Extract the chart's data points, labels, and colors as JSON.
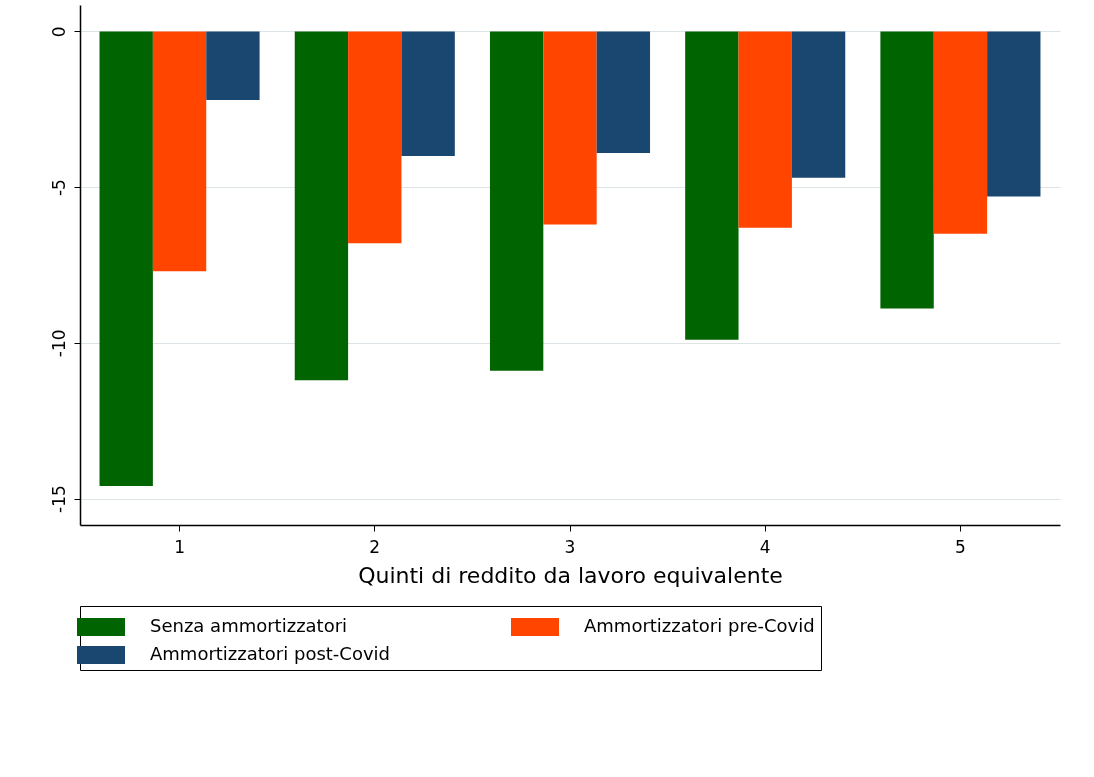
{
  "chart_data": {
    "type": "bar",
    "xlabel": "Quinti di reddito da lavoro equivalente",
    "categories": [
      "1",
      "2",
      "3",
      "4",
      "5"
    ],
    "series": [
      {
        "name": "Senza ammortizzatori",
        "color": "#006400",
        "values": [
          -14.6,
          -11.2,
          -10.9,
          -9.9,
          -8.9
        ]
      },
      {
        "name": "Ammortizzatori pre-Covid",
        "color": "#ff4500",
        "values": [
          -7.7,
          -6.8,
          -6.2,
          -6.3,
          -6.5
        ]
      },
      {
        "name": "Ammortizzatori post-Covid",
        "color": "#1a476f",
        "values": [
          -2.2,
          -4.0,
          -3.9,
          -4.7,
          -5.3
        ]
      }
    ],
    "ylim": [
      -15.85,
      0.85
    ],
    "yticks": [
      -15,
      -10,
      -5,
      0
    ],
    "grid": "y",
    "legend": "bottom"
  }
}
